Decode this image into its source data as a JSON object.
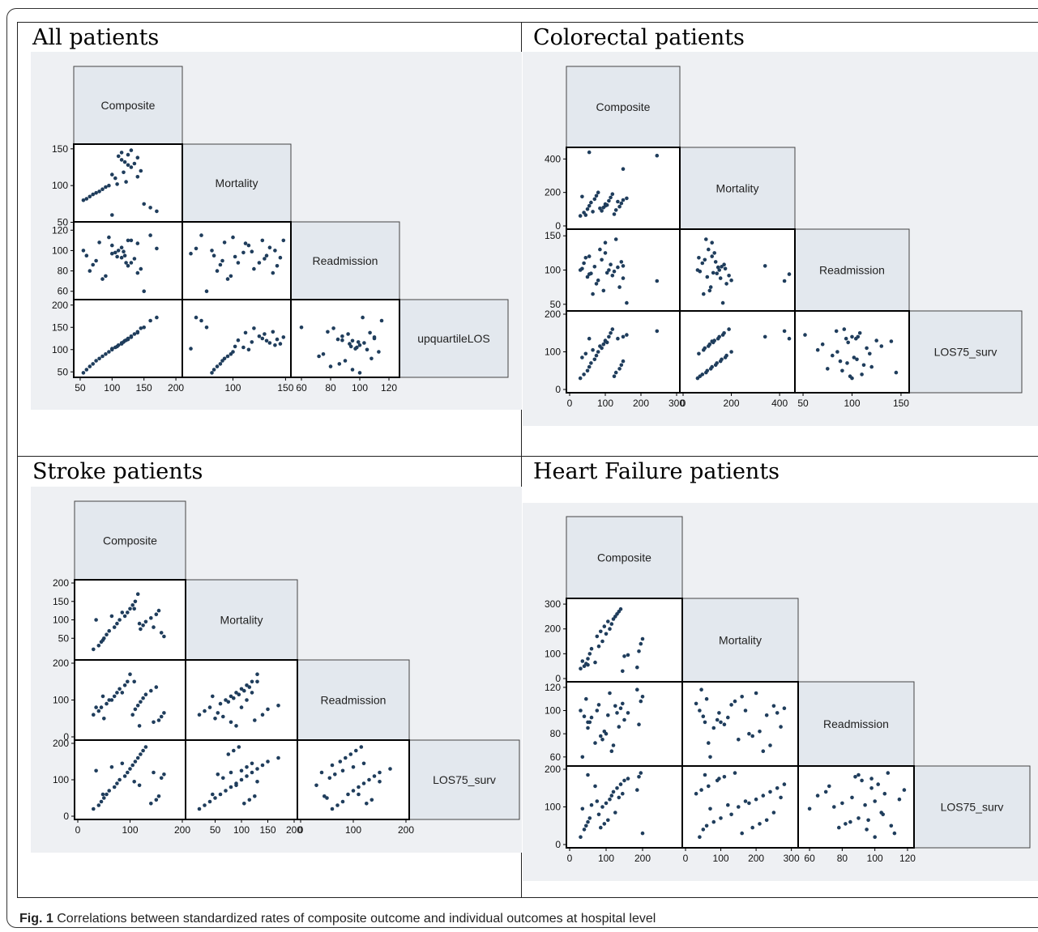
{
  "caption": {
    "label": "Fig. 1",
    "text": "Correlations between standardized rates of composite outcome and individual outcomes at hospital level"
  },
  "colors": {
    "point": "#1f3d5c",
    "diag_fill": "#e3e8ee",
    "background": "#eef0f3"
  },
  "chart_data": [
    {
      "type": "scatter",
      "title": "All patients",
      "variables": [
        "Composite",
        "Mortality",
        "Readmission",
        "upquartileLOS"
      ],
      "ranges": [
        [
          45,
          205
        ],
        [
          55,
          152
        ],
        [
          55,
          125
        ],
        [
          45,
          205
        ]
      ],
      "y_ticks": [
        [
          50,
          100,
          150
        ],
        [
          60,
          80,
          100,
          120
        ],
        [
          50,
          100,
          150,
          200
        ]
      ],
      "y_tick_labels": [
        [
          "50",
          "100",
          "150"
        ],
        [
          "60",
          "80",
          "100",
          "120"
        ],
        [
          "50",
          "100",
          "150",
          "200"
        ]
      ],
      "x_ticks": [
        [
          50,
          100,
          150,
          200
        ],
        [
          100,
          150
        ],
        [
          60,
          80,
          100,
          120
        ]
      ],
      "x_tick_labels": [
        [
          "50",
          "100",
          "150",
          "200"
        ],
        [
          "100",
          "150"
        ],
        [
          "60",
          "80",
          "100",
          "120"
        ]
      ],
      "points": {
        "Composite": [
          110,
          115,
          120,
          125,
          130,
          135,
          140,
          145,
          100,
          105,
          95,
          90,
          85,
          80,
          75,
          70,
          65,
          60,
          55,
          150,
          160,
          170,
          100,
          115,
          125,
          130,
          140,
          118,
          122,
          108
        ],
        "Mortality": [
          140,
          135,
          132,
          128,
          125,
          130,
          138,
          120,
          115,
          110,
          100,
          98,
          95,
          92,
          90,
          88,
          85,
          82,
          80,
          75,
          70,
          65,
          60,
          145,
          142,
          148,
          112,
          118,
          105,
          102
        ],
        "Readmission": [
          100,
          103,
          95,
          110,
          88,
          92,
          78,
          82,
          105,
          98,
          113,
          75,
          72,
          108,
          90,
          86,
          80,
          95,
          100,
          60,
          115,
          102,
          97,
          93,
          85,
          110,
          107,
          99,
          88,
          94
        ],
        "upquartileLOS": [
          110,
          115,
          120,
          125,
          130,
          135,
          140,
          148,
          100,
          105,
          95,
          90,
          85,
          80,
          75,
          68,
          62,
          55,
          48,
          150,
          165,
          172,
          102,
          113,
          123,
          128,
          138,
          117,
          121,
          107
        ]
      }
    },
    {
      "type": "scatter",
      "title": "Colorectal patients",
      "variables": [
        "Composite",
        "Mortality",
        "Readmission",
        "LOS75_surv"
      ],
      "ranges": [
        [
          0,
          300
        ],
        [
          0,
          450
        ],
        [
          45,
          155
        ],
        [
          0,
          200
        ]
      ],
      "y_ticks": [
        [
          0,
          200,
          400
        ],
        [
          50,
          100,
          150
        ],
        [
          0,
          100,
          200
        ]
      ],
      "y_tick_labels": [
        [
          "0",
          "200",
          "400"
        ],
        [
          "50",
          "100",
          "150"
        ],
        [
          "0",
          "100",
          "200"
        ]
      ],
      "x_ticks": [
        [
          0,
          100,
          200,
          300
        ],
        [
          0,
          200,
          400
        ],
        [
          50,
          100,
          150
        ]
      ],
      "x_tick_labels": [
        [
          "0",
          "100",
          "200",
          "300"
        ],
        [
          "0",
          "200",
          "400"
        ],
        [
          "50",
          "100",
          "150"
        ]
      ],
      "points": {
        "Composite": [
          30,
          40,
          50,
          55,
          60,
          70,
          75,
          80,
          90,
          95,
          100,
          110,
          115,
          120,
          125,
          130,
          140,
          145,
          150,
          35,
          45,
          65,
          85,
          105,
          135,
          160,
          245,
          150,
          55,
          100
        ],
        "Mortality": [
          60,
          80,
          100,
          120,
          140,
          160,
          180,
          200,
          90,
          110,
          130,
          150,
          170,
          190,
          70,
          95,
          115,
          135,
          155,
          175,
          65,
          85,
          105,
          125,
          145,
          165,
          420,
          340,
          440,
          120
        ],
        "Readmission": [
          100,
          110,
          90,
          120,
          95,
          105,
          80,
          85,
          115,
          70,
          125,
          100,
          108,
          92,
          98,
          145,
          75,
          112,
          88,
          102,
          118,
          65,
          130,
          96,
          104,
          52,
          84,
          106,
          94,
          140
        ],
        "LOS75_surv": [
          30,
          40,
          50,
          60,
          70,
          80,
          90,
          100,
          110,
          120,
          130,
          140,
          150,
          160,
          35,
          45,
          55,
          65,
          75,
          85,
          95,
          105,
          115,
          125,
          135,
          145,
          155,
          140,
          135,
          128
        ]
      }
    },
    {
      "type": "scatter",
      "title": "Stroke patients",
      "variables": [
        "Composite",
        "Mortality",
        "Readmission",
        "LOS75_surv"
      ],
      "ranges": [
        [
          0,
          200
        ],
        [
          0,
          200
        ],
        [
          0,
          200
        ],
        [
          0,
          200
        ]
      ],
      "y_ticks": [
        [
          50,
          100,
          150,
          200
        ],
        [
          0,
          100,
          200
        ],
        [
          0,
          100,
          200
        ]
      ],
      "y_tick_labels": [
        [
          "50",
          "100",
          "150",
          "200"
        ],
        [
          "0",
          "100",
          "200"
        ],
        [
          "0",
          "100",
          "200"
        ]
      ],
      "x_ticks": [
        [
          0,
          100,
          200
        ],
        [
          50,
          100,
          150,
          200
        ],
        [
          0,
          100,
          200
        ]
      ],
      "x_tick_labels": [
        [
          "0",
          "100",
          "200"
        ],
        [
          "50",
          "100",
          "150",
          "200"
        ],
        [
          "0",
          "100",
          "200"
        ]
      ],
      "points": {
        "Composite": [
          30,
          40,
          45,
          50,
          55,
          60,
          70,
          75,
          80,
          90,
          95,
          100,
          105,
          110,
          115,
          120,
          125,
          130,
          140,
          150,
          155,
          160,
          165,
          35,
          65,
          85,
          108,
          118,
          145,
          48
        ],
        "Mortality": [
          20,
          30,
          40,
          50,
          60,
          70,
          80,
          90,
          100,
          110,
          120,
          130,
          140,
          150,
          170,
          75,
          85,
          95,
          105,
          115,
          125,
          65,
          55,
          100,
          110,
          120,
          130,
          90,
          80,
          45
        ],
        "Readmission": [
          60,
          70,
          80,
          50,
          90,
          100,
          110,
          120,
          130,
          140,
          150,
          170,
          60,
          75,
          85,
          95,
          105,
          115,
          125,
          135,
          45,
          55,
          65,
          80,
          100,
          120,
          150,
          30,
          40,
          110
        ],
        "LOS75_surv": [
          20,
          30,
          40,
          50,
          60,
          70,
          80,
          90,
          100,
          110,
          120,
          130,
          140,
          150,
          160,
          170,
          180,
          190,
          35,
          45,
          55,
          105,
          115,
          125,
          135,
          145,
          95,
          85,
          120,
          60
        ]
      }
    },
    {
      "type": "scatter",
      "title": "Heart Failure patients",
      "variables": [
        "Composite",
        "Mortality",
        "Readmission",
        "LOS75_surv"
      ],
      "ranges": [
        [
          0,
          300
        ],
        [
          0,
          310
        ],
        [
          55,
          122
        ],
        [
          0,
          200
        ]
      ],
      "y_ticks": [
        [
          0,
          100,
          200,
          300
        ],
        [
          60,
          80,
          100,
          120
        ],
        [
          0,
          100,
          200
        ]
      ],
      "y_tick_labels": [
        [
          "0",
          "100",
          "200",
          "300"
        ],
        [
          "60",
          "80",
          "100",
          "120"
        ],
        [
          "0",
          "100",
          "200"
        ]
      ],
      "x_ticks": [
        [
          0,
          100,
          200
        ],
        [
          0,
          100,
          200,
          300
        ],
        [
          60,
          80,
          100,
          120
        ]
      ],
      "x_tick_labels": [
        [
          "0",
          "100",
          "200"
        ],
        [
          "0",
          "100",
          "200",
          "300"
        ],
        [
          "60",
          "80",
          "100",
          "120"
        ]
      ],
      "points": {
        "Composite": [
          30,
          40,
          45,
          50,
          55,
          80,
          90,
          100,
          110,
          115,
          120,
          130,
          140,
          150,
          190,
          195,
          200,
          85,
          95,
          105,
          125,
          35,
          60,
          75,
          135,
          145,
          185,
          70,
          160,
          50
        ],
        "Mortality": [
          40,
          50,
          60,
          80,
          100,
          130,
          150,
          180,
          200,
          220,
          240,
          260,
          280,
          90,
          110,
          140,
          160,
          190,
          210,
          230,
          250,
          70,
          120,
          170,
          270,
          30,
          45,
          65,
          95,
          55
        ],
        "Readmission": [
          100,
          95,
          110,
          85,
          90,
          105,
          75,
          80,
          115,
          65,
          70,
          98,
          102,
          92,
          88,
          108,
          112,
          78,
          82,
          96,
          104,
          60,
          94,
          100,
          86,
          106,
          118,
          72,
          98,
          90
        ],
        "LOS75_surv": [
          20,
          40,
          50,
          60,
          70,
          80,
          100,
          110,
          120,
          130,
          140,
          150,
          160,
          170,
          180,
          190,
          30,
          45,
          55,
          65,
          85,
          95,
          105,
          115,
          125,
          135,
          145,
          155,
          175,
          185
        ]
      }
    }
  ]
}
